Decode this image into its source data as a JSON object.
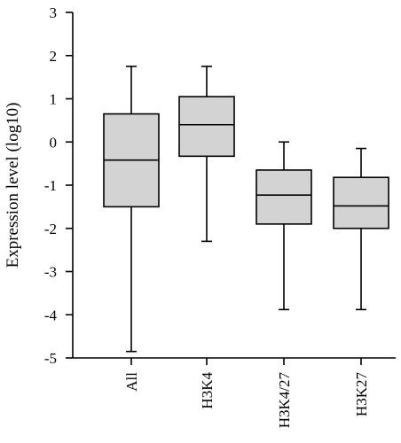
{
  "chart_data": {
    "type": "boxplot",
    "title": "",
    "xlabel": "",
    "ylabel": "Expression level (log10)",
    "ylim": [
      -5,
      3
    ],
    "yticks": [
      "3",
      "2",
      "1",
      "0",
      "-1",
      "-2",
      "-3",
      "-4",
      "-5"
    ],
    "ytick_values": [
      3,
      2,
      1,
      0,
      -1,
      -2,
      -3,
      -4,
      -5
    ],
    "categories": [
      "All",
      "H3K4",
      "H3K4/27",
      "H3K27"
    ],
    "boxes": [
      {
        "min": -4.85,
        "q1": -1.5,
        "median": -0.42,
        "q3": 0.65,
        "max": 1.75
      },
      {
        "min": -2.3,
        "q1": -0.33,
        "median": 0.4,
        "q3": 1.05,
        "max": 1.75
      },
      {
        "min": -3.88,
        "q1": -1.9,
        "median": -1.23,
        "q3": -0.65,
        "max": 0.0
      },
      {
        "min": -3.88,
        "q1": -2.0,
        "median": -1.48,
        "q3": -0.82,
        "max": -0.15
      }
    ],
    "box_fill": "#d3d3d3",
    "grid": false,
    "legend": "none"
  }
}
